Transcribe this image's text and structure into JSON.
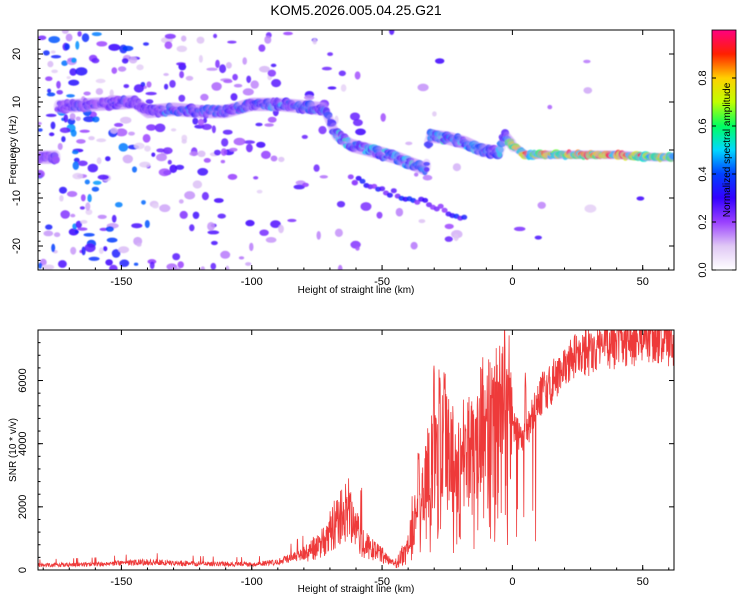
{
  "figure": {
    "title": "KOM5.2026.005.04.25.G21"
  },
  "chart_data": [
    {
      "type": "heatmap",
      "xlabel": "Height of straight line (km)",
      "ylabel": "Frequency (Hz)",
      "xlim": [
        -182,
        62
      ],
      "ylim": [
        -25,
        25
      ],
      "x_ticks": [
        -150,
        -100,
        -50,
        0,
        50
      ],
      "y_ticks": [
        -20,
        -10,
        0,
        10,
        20
      ],
      "colorbar": {
        "label": "Normalized spectral amplitude",
        "range": [
          0,
          1
        ],
        "ticks": [
          0.0,
          0.2,
          0.4,
          0.6,
          0.8
        ],
        "tick_labels": [
          "0.0",
          "0.2",
          "0.4",
          "0.6",
          "0.8"
        ],
        "colormap": [
          "#ffffff",
          "#e0c8f5",
          "#9a40ff",
          "#3300ff",
          "#0040ff",
          "#00d8ff",
          "#00ff60",
          "#c0ff00",
          "#ffd000",
          "#ff2000",
          "#ff0080"
        ]
      },
      "ridge": {
        "description": "dominant frequency track",
        "points": [
          [
            -175,
            9
          ],
          [
            -160,
            9.5
          ],
          [
            -145,
            10
          ],
          [
            -140,
            8
          ],
          [
            -130,
            8.5
          ],
          [
            -120,
            8
          ],
          [
            -110,
            8
          ],
          [
            -100,
            9.5
          ],
          [
            -90,
            9.5
          ],
          [
            -80,
            9
          ],
          [
            -72,
            8.5
          ],
          [
            -68,
            3.5
          ],
          [
            -62,
            1
          ],
          [
            -55,
            0
          ],
          [
            -45,
            -1.5
          ],
          [
            -38,
            -3
          ],
          [
            -33,
            -4
          ],
          [
            -32,
            3
          ],
          [
            -25,
            2.5
          ],
          [
            -18,
            1.5
          ],
          [
            -12,
            0
          ],
          [
            -5,
            -0.5
          ],
          [
            -3,
            3
          ],
          [
            0,
            1
          ],
          [
            5,
            -1
          ],
          [
            20,
            -1
          ],
          [
            40,
            -1
          ],
          [
            55,
            -1.5
          ],
          [
            62,
            -1.5
          ]
        ],
        "peak_amplitude": 0.95
      }
    },
    {
      "type": "line",
      "xlabel": "Height of straight line (km)",
      "ylabel": "SNR (10 * v/v)",
      "xlim": [
        -182,
        62
      ],
      "ylim": [
        0,
        7600
      ],
      "x_ticks": [
        -150,
        -100,
        -50,
        0,
        50
      ],
      "y_ticks": [
        0,
        2000,
        4000,
        6000
      ],
      "color": "#ee3a3a",
      "series": {
        "name": "SNR",
        "envelope": [
          [
            -182,
            150
          ],
          [
            -160,
            180
          ],
          [
            -140,
            250
          ],
          [
            -120,
            200
          ],
          [
            -100,
            180
          ],
          [
            -90,
            250
          ],
          [
            -80,
            500
          ],
          [
            -72,
            900
          ],
          [
            -68,
            1500
          ],
          [
            -64,
            1900
          ],
          [
            -60,
            1300
          ],
          [
            -57,
            800
          ],
          [
            -52,
            600
          ],
          [
            -48,
            350
          ],
          [
            -46,
            250
          ],
          [
            -44,
            300
          ],
          [
            -42,
            600
          ],
          [
            -40,
            900
          ],
          [
            -38,
            1700
          ],
          [
            -36,
            2100
          ],
          [
            -34,
            2400
          ],
          [
            -32,
            3100
          ],
          [
            -30,
            3500
          ],
          [
            -28,
            4200
          ],
          [
            -26,
            3800
          ],
          [
            -22,
            3400
          ],
          [
            -18,
            3600
          ],
          [
            -14,
            3900
          ],
          [
            -10,
            4600
          ],
          [
            -6,
            4800
          ],
          [
            -2,
            5000
          ],
          [
            0,
            4700
          ],
          [
            4,
            4000
          ],
          [
            8,
            5000
          ],
          [
            12,
            5700
          ],
          [
            16,
            6000
          ],
          [
            20,
            6300
          ],
          [
            24,
            6700
          ],
          [
            28,
            6900
          ],
          [
            32,
            7050
          ],
          [
            36,
            7150
          ],
          [
            40,
            7200
          ],
          [
            45,
            7300
          ],
          [
            50,
            7350
          ],
          [
            55,
            7400
          ],
          [
            62,
            7300
          ]
        ],
        "peaks": [
          [
            -30,
            6500
          ],
          [
            -28,
            6450
          ],
          [
            -26,
            6300
          ],
          [
            -33,
            4000
          ],
          [
            -36,
            3800
          ],
          [
            -63,
            3000
          ],
          [
            -58,
            2600
          ],
          [
            -18,
            4800
          ],
          [
            -14,
            5000
          ],
          [
            -10,
            5200
          ],
          [
            -8,
            5900
          ],
          [
            -5,
            6300
          ],
          [
            -2,
            6700
          ],
          [
            5,
            6300
          ],
          [
            12,
            6500
          ],
          [
            14,
            6600
          ],
          [
            25,
            7300
          ],
          [
            30,
            7500
          ],
          [
            34,
            7600
          ]
        ]
      }
    }
  ]
}
